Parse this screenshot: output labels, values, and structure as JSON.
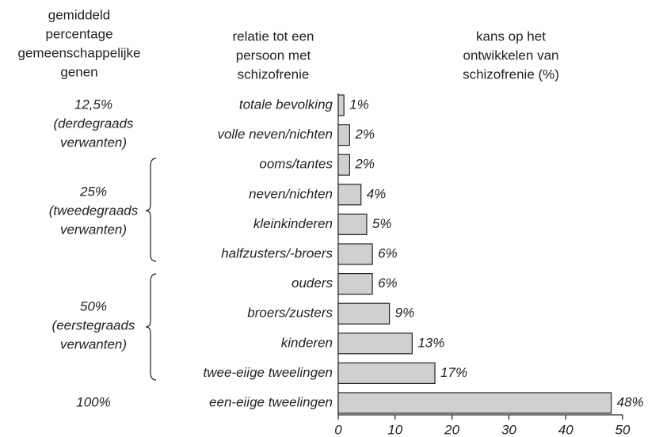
{
  "chart_data": {
    "type": "bar",
    "orientation": "horizontal",
    "column_headers": [
      [
        "gemiddeld",
        "percentage",
        "gemeenschappelijke",
        "genen"
      ],
      [
        "relatie tot een",
        "persoon met",
        "schizofrenie"
      ],
      [
        "kans op het",
        "ontwikkelen van",
        "schizofrenie (%)"
      ]
    ],
    "groups": [
      [
        "12,5%",
        "(derdegraads",
        "verwanten)"
      ],
      [
        "25%",
        "(tweedegraads",
        "verwanten)"
      ],
      [
        "50%",
        "(eerstegraads",
        "verwanten)"
      ],
      [
        "100%"
      ]
    ],
    "categories": [
      "totale bevolking",
      "volle neven/nichten",
      "ooms/tantes",
      "neven/nichten",
      "kleinkinderen",
      "halfzusters/-broers",
      "ouders",
      "broers/zusters",
      "kinderen",
      "twee-eiige tweelingen",
      "een-eiige tweelingen"
    ],
    "values": [
      1,
      2,
      2,
      4,
      5,
      6,
      6,
      9,
      13,
      17,
      48
    ],
    "value_labels": [
      "1%",
      "2%",
      "2%",
      "4%",
      "5%",
      "6%",
      "6%",
      "9%",
      "13%",
      "17%",
      "48%"
    ],
    "color": "#d0d0d0",
    "xlim": [
      0,
      50
    ],
    "xticks": [
      0,
      10,
      20,
      30,
      40,
      50
    ]
  }
}
